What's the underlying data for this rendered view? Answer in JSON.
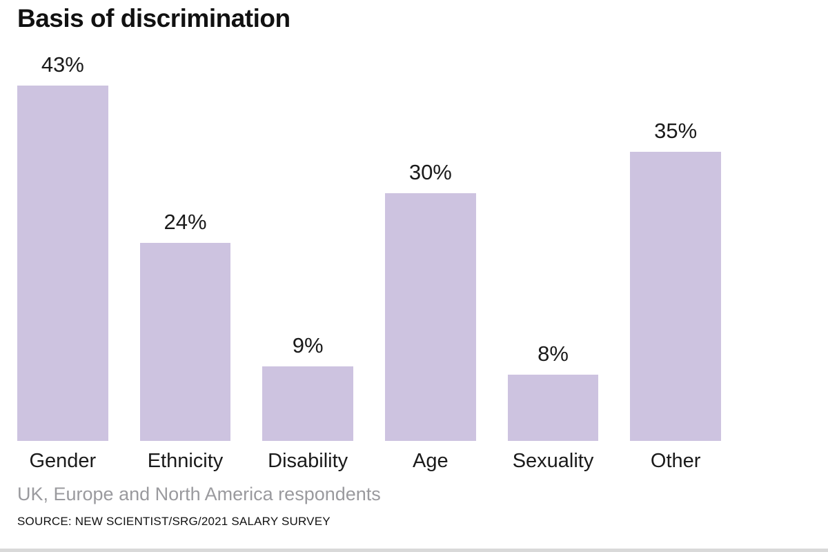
{
  "chart_data": {
    "type": "bar",
    "title": "Basis of discrimination",
    "categories": [
      "Gender",
      "Ethnicity",
      "Disability",
      "Age",
      "Sexuality",
      "Other"
    ],
    "values": [
      43,
      24,
      9,
      30,
      8,
      35
    ],
    "value_labels": [
      "43%",
      "24%",
      "9%",
      "30%",
      "8%",
      "35%"
    ],
    "subtitle": "UK, Europe and North America respondents",
    "source": "SOURCE: NEW SCIENTIST/SRG/2021 SALARY SURVEY",
    "bar_color": "#cdc3e0",
    "ylim": [
      0,
      43
    ],
    "xlabel": "",
    "ylabel": "",
    "grid": false,
    "legend": false
  }
}
